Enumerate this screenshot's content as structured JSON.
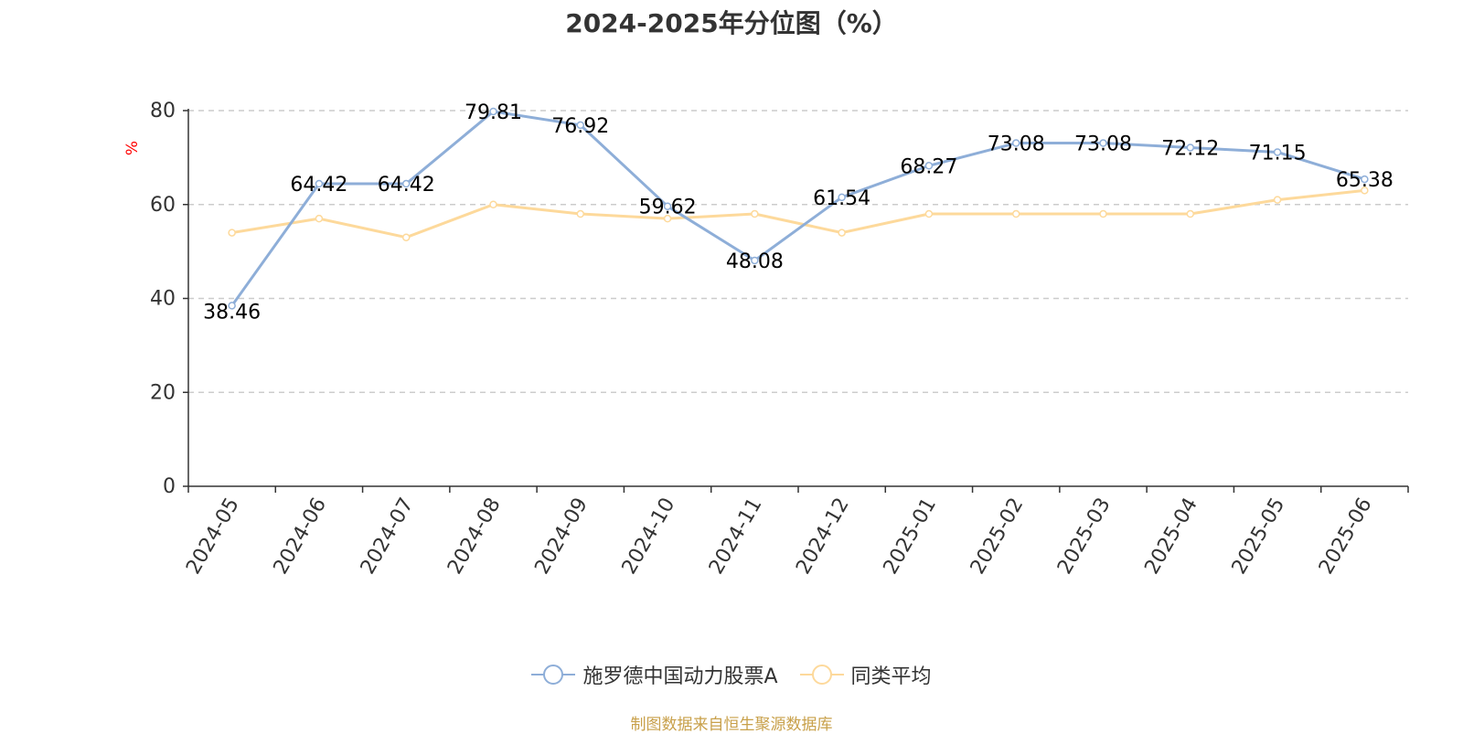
{
  "chart_data": {
    "type": "line",
    "title": "2024-2025年分位图（%）",
    "ylabel": "%",
    "xlabel": "",
    "ylim": [
      0,
      80
    ],
    "yticks": [
      0,
      20,
      40,
      60,
      80
    ],
    "grid": true,
    "legend_position": "bottom",
    "categories": [
      "2024-05",
      "2024-06",
      "2024-07",
      "2024-08",
      "2024-09",
      "2024-10",
      "2024-11",
      "2024-12",
      "2025-01",
      "2025-02",
      "2025-03",
      "2025-04",
      "2025-05",
      "2025-06"
    ],
    "series": [
      {
        "name": "施罗德中国动力股票A",
        "color": "#8eaed8",
        "values": [
          38.46,
          64.42,
          64.42,
          79.81,
          76.92,
          59.62,
          48.08,
          61.54,
          68.27,
          73.08,
          73.08,
          72.12,
          71.15,
          65.38
        ],
        "labels": [
          "38.46",
          "64.42",
          "64.42",
          "79.81",
          "76.92",
          "59.62",
          "48.08",
          "61.54",
          "68.27",
          "73.08",
          "73.08",
          "72.12",
          "71.15",
          "65.38"
        ]
      },
      {
        "name": "同类平均",
        "color": "#fdd99b",
        "values": [
          54,
          57,
          53,
          60,
          58,
          57,
          58,
          54,
          58,
          58,
          58,
          58,
          61,
          63
        ]
      }
    ]
  },
  "footer": {
    "source": "制图数据来自恒生聚源数据库"
  },
  "colors": {
    "axis": "#333333",
    "grid": "#cccccc",
    "ylabel": "#ff0000",
    "source": "#c8a04a"
  }
}
